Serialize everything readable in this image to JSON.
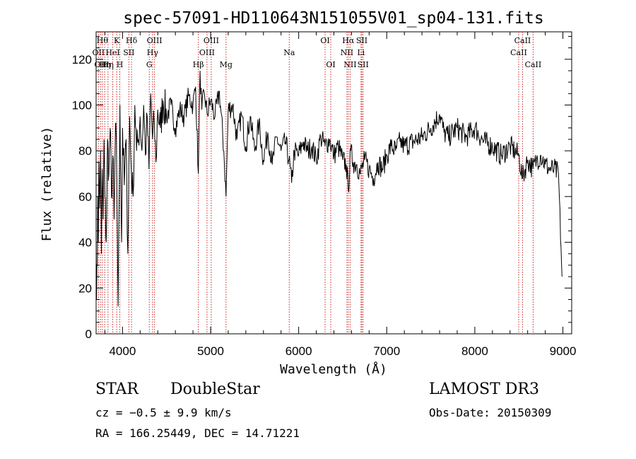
{
  "chart_data": {
    "type": "line",
    "title": "spec-57091-HD110643N151055V01_sp04-131.fits",
    "xlabel": "Wavelength (Å)",
    "ylabel": "Flux (relative)",
    "xlim": [
      3700,
      9100
    ],
    "ylim": [
      0,
      132
    ],
    "x_ticks": [
      4000,
      5000,
      6000,
      7000,
      8000,
      9000
    ],
    "y_ticks": [
      0,
      20,
      40,
      60,
      80,
      100,
      120
    ],
    "grid": false,
    "line_color": "#000000",
    "marker_color": "#cc2222",
    "series": [
      {
        "x": [
          3700,
          3705,
          3712,
          3718,
          3725,
          3732,
          3740,
          3750,
          3760,
          3770,
          3780,
          3790,
          3800,
          3815,
          3830,
          3845,
          3860,
          3875,
          3890,
          3905,
          3920,
          3935,
          3950,
          3960,
          3970,
          3980,
          3990,
          4000,
          4020,
          4040,
          4060,
          4080,
          4100,
          4120,
          4140,
          4160,
          4180,
          4200,
          4220,
          4240,
          4260,
          4280,
          4300,
          4320,
          4340,
          4360,
          4380,
          4400,
          4430,
          4460,
          4500,
          4550,
          4600,
          4650,
          4700,
          4750,
          4800,
          4830,
          4861,
          4880,
          4900,
          4930,
          4960,
          5000,
          5050,
          5100,
          5150,
          5175,
          5200,
          5250,
          5300,
          5350,
          5400,
          5450,
          5500,
          5550,
          5600,
          5650,
          5700,
          5750,
          5800,
          5850,
          5890,
          5920,
          5950,
          6000,
          6050,
          6100,
          6150,
          6200,
          6250,
          6300,
          6350,
          6400,
          6450,
          6500,
          6540,
          6563,
          6590,
          6620,
          6660,
          6700,
          6750,
          6800,
          6850,
          6900,
          6950,
          7000,
          7050,
          7100,
          7150,
          7200,
          7300,
          7400,
          7500,
          7600,
          7650,
          7700,
          7800,
          7900,
          8000,
          8100,
          8200,
          8300,
          8400,
          8498,
          8542,
          8600,
          8662,
          8700,
          8750,
          8800,
          8850,
          8900,
          8950,
          8990
        ],
        "y": [
          35,
          15,
          30,
          60,
          40,
          75,
          55,
          80,
          35,
          72,
          50,
          85,
          60,
          40,
          85,
          70,
          90,
          60,
          78,
          50,
          92,
          70,
          12,
          55,
          100,
          68,
          40,
          90,
          65,
          85,
          35,
          95,
          70,
          60,
          100,
          80,
          85,
          95,
          80,
          100,
          78,
          95,
          72,
          105,
          85,
          92,
          75,
          98,
          90,
          102,
          95,
          100,
          90,
          98,
          95,
          104,
          100,
          108,
          70,
          115,
          98,
          105,
          96,
          102,
          95,
          106,
          80,
          60,
          98,
          100,
          85,
          96,
          82,
          95,
          80,
          92,
          76,
          88,
          74,
          86,
          80,
          84,
          76,
          66,
          80,
          78,
          84,
          80,
          82,
          76,
          86,
          82,
          85,
          78,
          82,
          76,
          74,
          63,
          80,
          75,
          74,
          70,
          76,
          72,
          68,
          75,
          72,
          78,
          82,
          80,
          84,
          82,
          84,
          86,
          90,
          96,
          88,
          86,
          90,
          86,
          90,
          84,
          82,
          78,
          82,
          78,
          68,
          76,
          72,
          76,
          78,
          74,
          72,
          72,
          70,
          25
        ]
      }
    ],
    "lines": [
      {
        "x": 3727,
        "label": "OII",
        "row": 2
      },
      {
        "x": 3750,
        "label": "OII",
        "row": 3
      },
      {
        "x": 3771,
        "label": "Hθ",
        "row": 1
      },
      {
        "x": 3798,
        "label": "Hη",
        "row": 3
      },
      {
        "x": 3835,
        "label": "Hη",
        "row": 3
      },
      {
        "x": 3889,
        "label": "HeI",
        "row": 2
      },
      {
        "x": 3934,
        "label": "K",
        "row": 1
      },
      {
        "x": 3969,
        "label": "H",
        "row": 3
      },
      {
        "x": 4072,
        "label": "SII",
        "row": 2
      },
      {
        "x": 4102,
        "label": "Hδ",
        "row": 1
      },
      {
        "x": 4304,
        "label": "G",
        "row": 3
      },
      {
        "x": 4341,
        "label": "Hγ",
        "row": 2
      },
      {
        "x": 4363,
        "label": "OIII",
        "row": 1
      },
      {
        "x": 4861,
        "label": "Hβ",
        "row": 3
      },
      {
        "x": 4959,
        "label": "OIII",
        "row": 2
      },
      {
        "x": 5007,
        "label": "OIII",
        "row": 1
      },
      {
        "x": 5175,
        "label": "Mg",
        "row": 3
      },
      {
        "x": 5893,
        "label": "Na",
        "row": 2
      },
      {
        "x": 6300,
        "label": "OI",
        "row": 1
      },
      {
        "x": 6364,
        "label": "OI",
        "row": 3
      },
      {
        "x": 6548,
        "label": "NII",
        "row": 2
      },
      {
        "x": 6563,
        "label": "Hα",
        "row": 1
      },
      {
        "x": 6584,
        "label": "NII",
        "row": 3
      },
      {
        "x": 6708,
        "label": "Li",
        "row": 2
      },
      {
        "x": 6717,
        "label": "SII",
        "row": 1
      },
      {
        "x": 6731,
        "label": "SII",
        "row": 3
      },
      {
        "x": 8498,
        "label": "CaII",
        "row": 2
      },
      {
        "x": 8542,
        "label": "CaII",
        "row": 1
      },
      {
        "x": 8662,
        "label": "CaII",
        "row": 3
      }
    ]
  },
  "footer": {
    "class_label": "STAR",
    "subclass": "DoubleStar",
    "survey": "LAMOST DR3",
    "cz": "cz = −0.5 ± 9.9 km/s",
    "obs_date": "Obs-Date: 20150309",
    "coords": "RA = 166.25449, DEC =  14.71221"
  }
}
